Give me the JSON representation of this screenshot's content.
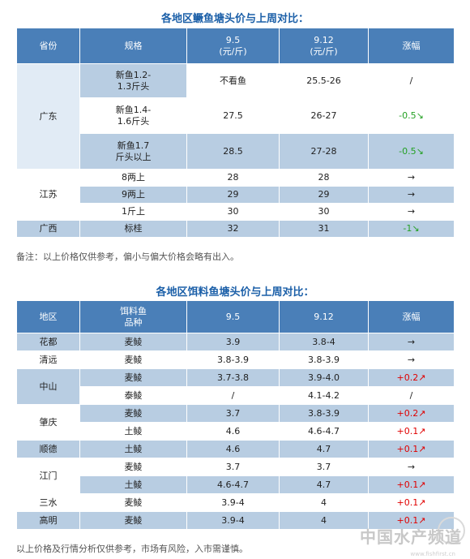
{
  "table1": {
    "title": "各地区鳜鱼塘头价与上周对比：",
    "headers": [
      "省份",
      "规格",
      "9.5",
      "(元/斤)",
      "9.12",
      "(元/斤)",
      "涨幅"
    ],
    "provinces": [
      "广东",
      "江苏",
      "广西"
    ],
    "rows": [
      {
        "spec1": "新鱼1.2-",
        "spec2": "1.3斤头",
        "p1": "不看鱼",
        "p2": "25.5-26",
        "chg": "/"
      },
      {
        "spec1": "新鱼1.4-",
        "spec2": "1.6斤头",
        "p1": "27.5",
        "p2": "26-27",
        "chg": "-0.5↘"
      },
      {
        "spec1": "新鱼1.7",
        "spec2": "斤头以上",
        "p1": "28.5",
        "p2": "27-28",
        "chg": "-0.5↘"
      },
      {
        "spec": "8两上",
        "p1": "28",
        "p2": "28",
        "chg": "→"
      },
      {
        "spec": "9两上",
        "p1": "29",
        "p2": "29",
        "chg": "→"
      },
      {
        "spec": "1斤上",
        "p1": "30",
        "p2": "30",
        "chg": "→"
      },
      {
        "spec": "标桂",
        "p1": "32",
        "p2": "31",
        "chg": "-1↘"
      }
    ],
    "note": "备注：以上价格仅供参考，偏小与偏大价格会略有出入。"
  },
  "table2": {
    "title": "各地区饵料鱼塘头价与上周对比：",
    "headers": [
      "地区",
      "饵料鱼",
      "品种",
      "9.5",
      "9.12",
      "涨幅"
    ],
    "regions": [
      "花都",
      "清远",
      "中山",
      "肇庆",
      "顺德",
      "江门",
      "三水",
      "高明"
    ],
    "rows": [
      {
        "kind": "麦鲮",
        "p1": "3.9",
        "p2": "3.8-4",
        "chg": "→"
      },
      {
        "kind": "麦鲮",
        "p1": "3.8-3.9",
        "p2": "3.8-3.9",
        "chg": "→"
      },
      {
        "kind": "麦鲮",
        "p1": "3.7-3.8",
        "p2": "3.9-4.0",
        "chg": "+0.2↗"
      },
      {
        "kind": "泰鲮",
        "p1": "/",
        "p2": "4.1-4.2",
        "chg": "/"
      },
      {
        "kind": "麦鲮",
        "p1": "3.7",
        "p2": "3.8-3.9",
        "chg": "+0.2↗"
      },
      {
        "kind": "土鲮",
        "p1": "4.6",
        "p2": "4.6-4.7",
        "chg": "+0.1↗"
      },
      {
        "kind": "土鲮",
        "p1": "4.6",
        "p2": "4.7",
        "chg": "+0.1↗"
      },
      {
        "kind": "麦鲮",
        "p1": "3.7",
        "p2": "3.7",
        "chg": "→"
      },
      {
        "kind": "土鲮",
        "p1": "4.6-4.7",
        "p2": "4.7",
        "chg": "+0.1↗"
      },
      {
        "kind": "麦鲮",
        "p1": "3.9-4",
        "p2": "4",
        "chg": "+0.1↗"
      },
      {
        "kind": "麦鲮",
        "p1": "3.9-4",
        "p2": "4",
        "chg": "+0.1↗"
      }
    ],
    "note": "以上价格及行情分析仅供参考，市场有风险，入市需谨慎。"
  },
  "watermark": {
    "main": "中国水产频道",
    "sub": "www.fishfirst.cn"
  }
}
